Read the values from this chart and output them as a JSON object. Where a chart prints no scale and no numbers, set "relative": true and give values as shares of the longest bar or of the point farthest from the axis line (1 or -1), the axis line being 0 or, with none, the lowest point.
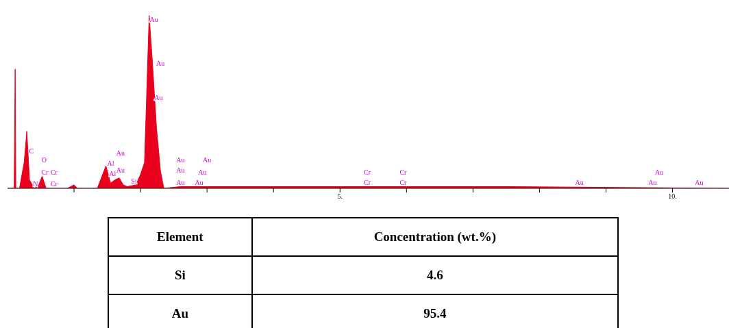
{
  "chart_data": [
    {
      "type": "area",
      "relative": true,
      "color": "#e8001c",
      "x": [
        0,
        0.1,
        0.115,
        0.125,
        0.18,
        0.25,
        0.29,
        0.33,
        0.4,
        0.47,
        0.52,
        0.58,
        0.9,
        1.0,
        1.05,
        1.35,
        1.43,
        1.48,
        1.55,
        1.62,
        1.68,
        1.74,
        1.8,
        1.93,
        2.0,
        2.06,
        2.13,
        2.18,
        2.24,
        2.3,
        2.35,
        2.6,
        3.0,
        4.0,
        5.0,
        6.0,
        7.5,
        10.85
      ],
      "values": [
        0,
        0,
        0.69,
        0,
        0,
        0.15,
        0.33,
        0.05,
        0,
        0.02,
        0.07,
        0,
        0,
        0.02,
        0,
        0,
        0.08,
        0.13,
        0.03,
        0.05,
        0.06,
        0.02,
        0.01,
        0.02,
        0.08,
        0.15,
        1.0,
        0.72,
        0.35,
        0.1,
        0,
        0.01,
        0.01,
        0.01,
        0.01,
        0.01,
        0.01,
        0
      ],
      "xlim": [
        0,
        10.85
      ],
      "xticks": [
        {
          "value": 1,
          "label": null
        },
        {
          "value": 2,
          "label": null
        },
        {
          "value": 3,
          "label": null
        },
        {
          "value": 4,
          "label": null
        },
        {
          "value": 5,
          "label": "5."
        },
        {
          "value": 6,
          "label": null
        },
        {
          "value": 7,
          "label": null
        },
        {
          "value": 8,
          "label": null
        },
        {
          "value": 9,
          "label": null
        },
        {
          "value": 10,
          "label": "10."
        }
      ],
      "annotations": [
        "Au",
        "Au",
        "Au",
        "C",
        "O",
        "Cr",
        "Cr",
        "N",
        "Cr",
        "Al",
        "Al",
        "Au",
        "Au",
        "Si",
        "Au",
        "Au",
        "Au",
        "Au",
        "Au",
        "Au",
        "Cr",
        "Cr",
        "Cr",
        "Cr",
        "Au",
        "Au",
        "Au",
        "Au"
      ]
    },
    {
      "type": "other",
      "xlabel": "Element",
      "ylabel": "Concentration (wt.%)",
      "categories": [
        "Si",
        "Au"
      ],
      "values": [
        4.6,
        95.4
      ],
      "data_labels": true
    }
  ]
}
